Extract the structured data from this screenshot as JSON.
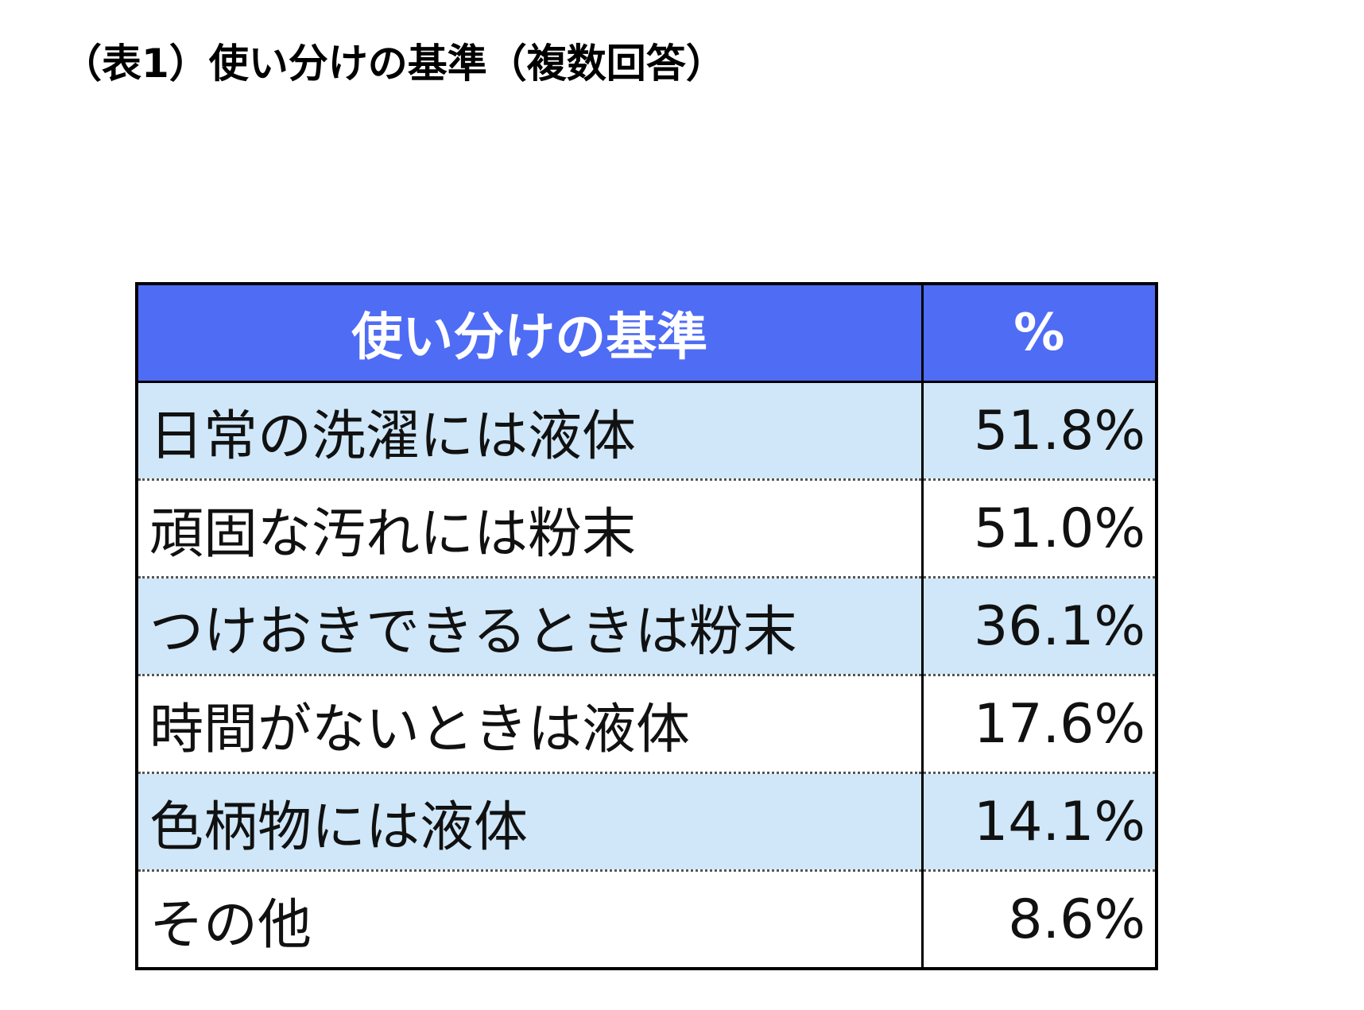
{
  "caption": "（表1）使い分けの基準（複数回答）",
  "table": {
    "header": {
      "label": "使い分けの基準",
      "value": "%"
    },
    "rows": [
      {
        "label": "日常の洗濯には液体",
        "value": "51.8%"
      },
      {
        "label": "頑固な汚れには粉末",
        "value": "51.0%"
      },
      {
        "label": "つけおきできるときは粉末",
        "value": "36.1%"
      },
      {
        "label": "時間がないときは液体",
        "value": "17.6%"
      },
      {
        "label": "色柄物には液体",
        "value": "14.1%"
      },
      {
        "label": "その他",
        "value": "8.6%"
      }
    ],
    "colors": {
      "header_bg": "#4f6cf5",
      "header_text": "#ffffff",
      "shaded_row_bg": "#cfe7f8",
      "plain_row_bg": "#ffffff"
    }
  }
}
